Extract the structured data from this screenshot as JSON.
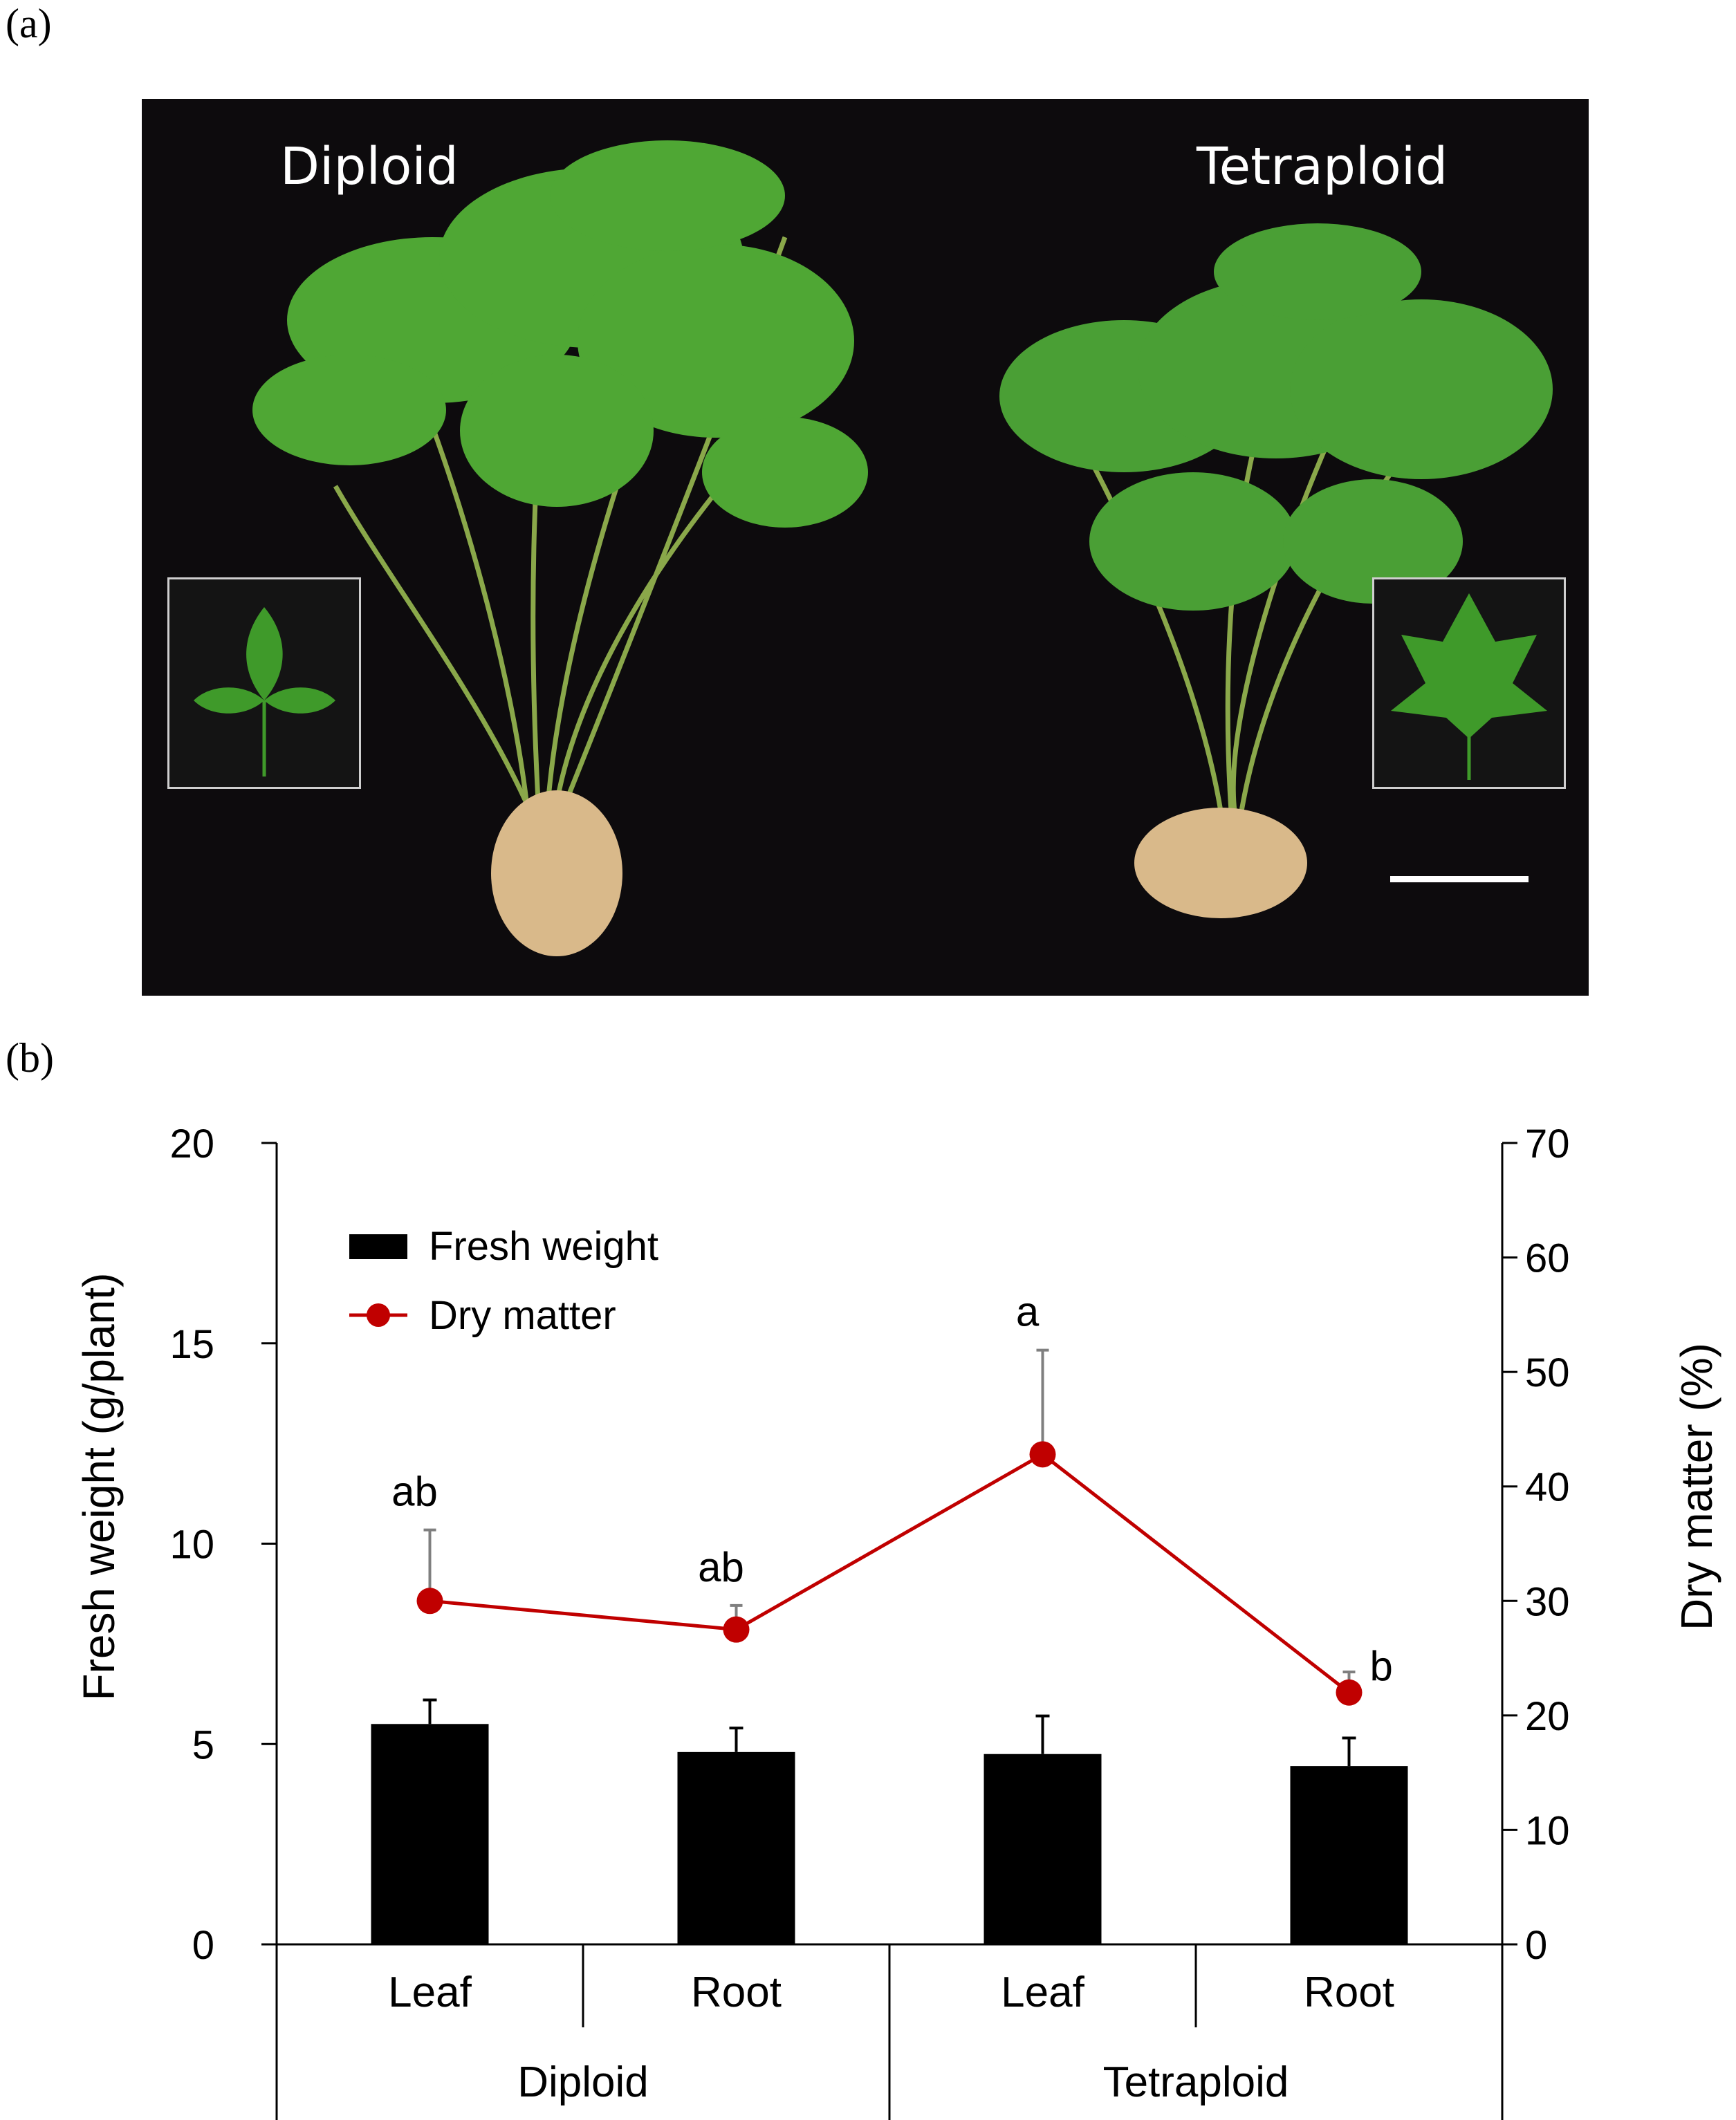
{
  "panel_a": {
    "letter": "(a)",
    "label_left": "Diploid",
    "label_right": "Tetraploid"
  },
  "panel_b": {
    "letter": "(b)"
  },
  "colors": {
    "bar": "#000000",
    "line": "#c00000",
    "photo_bg": "#0d0b0d",
    "leaf": "#3f9a2a"
  },
  "chart_data": {
    "type": "bar",
    "ylabel": "Fresh weight (g/plant)",
    "y2label": "Dry matter (%)",
    "ylim": [
      0,
      20
    ],
    "y2lim": [
      0,
      70
    ],
    "yticks": [
      0,
      5,
      10,
      15,
      20
    ],
    "y2ticks": [
      0,
      10,
      20,
      30,
      40,
      50,
      60,
      70
    ],
    "categories": [
      "Leaf",
      "Root",
      "Leaf",
      "Root"
    ],
    "groups": [
      "Diploid",
      "Tetraploid"
    ],
    "legend": {
      "bar": "Fresh weight",
      "line": "Dry matter",
      "position": "top-left"
    },
    "series": [
      {
        "name": "Fresh weight",
        "type": "bar",
        "axis": "left",
        "values": [
          5.5,
          4.8,
          4.75,
          4.45
        ],
        "errors": [
          0.6,
          0.6,
          0.95,
          0.7
        ]
      },
      {
        "name": "Dry matter",
        "type": "line",
        "axis": "right",
        "values": [
          30.0,
          27.5,
          42.8,
          22.0
        ],
        "errors": [
          6.2,
          2.1,
          9.1,
          1.8
        ],
        "labels": [
          "ab",
          "ab",
          "a",
          "b"
        ]
      }
    ]
  }
}
